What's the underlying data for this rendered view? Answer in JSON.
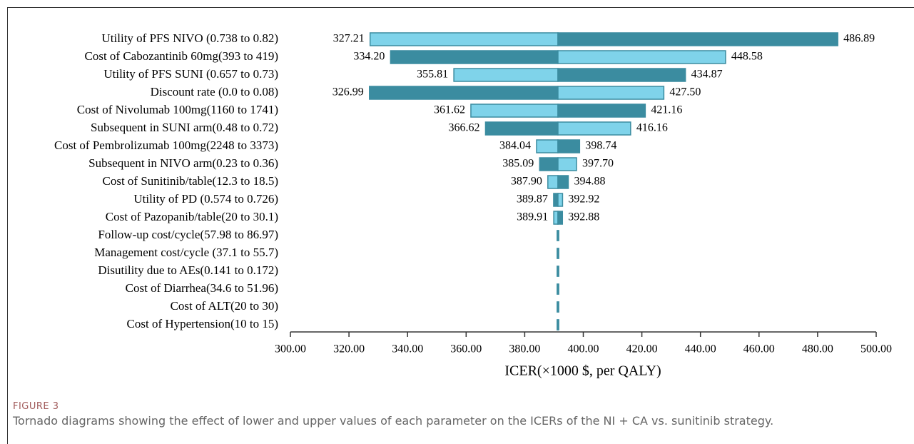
{
  "chart_data": {
    "type": "tornado",
    "x_label": "ICER(×1000 $, per QALY)",
    "categories": [
      "Utility of PFS NIVO (0.738 to 0.82)",
      "Cost of Cabozantinib 60mg(393 to 419)",
      "Utility of PFS SUNI (0.657 to 0.73)",
      "Discount rate (0.0 to 0.08)",
      "Cost of Nivolumab 100mg(1160 to 1741)",
      "Subsequent in SUNI arm(0.48 to 0.72)",
      "Cost of Pembrolizumab 100mg(2248 to 3373)",
      "Subsequent in NIVO arm(0.23 to 0.36)",
      "Cost of Sunitinib/table(12.3 to 18.5)",
      "Utility of PD (0.574 to 0.726)",
      "Cost of Pazopanib/table(20 to 30.1)",
      "Follow-up cost/cycle(57.98 to 86.97)",
      "Management cost/cycle (37.1 to 55.7)",
      "Disutility due to AEs(0.141 to 0.172)",
      "Cost of Diarrhea(34.6 to 51.96)",
      "Cost of ALT(20 to 30)",
      "Cost of Hypertension(10 to 15)"
    ],
    "base": 391.35,
    "low": [
      327.21,
      334.2,
      355.81,
      326.99,
      361.62,
      366.62,
      384.04,
      385.09,
      387.9,
      389.87,
      389.91,
      391.35,
      391.35,
      391.35,
      391.35,
      391.35,
      391.35
    ],
    "low_labels": [
      "327.21",
      "334.20",
      "355.81",
      "326.99",
      "361.62",
      "366.62",
      "384.04",
      "385.09",
      "387.90",
      "389.87",
      "389.91",
      null,
      null,
      null,
      null,
      null,
      null
    ],
    "high": [
      486.89,
      448.58,
      434.87,
      427.5,
      421.16,
      416.16,
      398.74,
      397.7,
      394.88,
      392.92,
      392.88,
      391.35,
      391.35,
      391.35,
      391.35,
      391.35,
      391.35
    ],
    "high_labels": [
      "486.89",
      "448.58",
      "434.87",
      "427.50",
      "421.16",
      "416.16",
      "398.74",
      "397.70",
      "394.88",
      "392.92",
      "392.88",
      null,
      null,
      null,
      null,
      null,
      null
    ],
    "low_colors": [
      "#7fd3ea",
      "#3b8ca0",
      "#7fd3ea",
      "#3b8ca0",
      "#7fd3ea",
      "#3b8ca0",
      "#7fd3ea",
      "#3b8ca0",
      "#7fd3ea",
      "#3b8ca0",
      "#7fd3ea",
      "#3b8ca0",
      "#3b8ca0",
      "#3b8ca0",
      "#3b8ca0",
      "#3b8ca0",
      "#3b8ca0"
    ],
    "high_colors": [
      "#3b8ca0",
      "#7fd3ea",
      "#3b8ca0",
      "#7fd3ea",
      "#3b8ca0",
      "#7fd3ea",
      "#3b8ca0",
      "#7fd3ea",
      "#3b8ca0",
      "#7fd3ea",
      "#3b8ca0",
      "#3b8ca0",
      "#3b8ca0",
      "#3b8ca0",
      "#3b8ca0",
      "#3b8ca0",
      "#3b8ca0"
    ],
    "xlim": [
      300,
      500
    ],
    "xticks": [
      {
        "value": 300,
        "label": "300.00"
      },
      {
        "value": 320,
        "label": "320.00"
      },
      {
        "value": 340,
        "label": "340.00"
      },
      {
        "value": 360,
        "label": "360.00"
      },
      {
        "value": 380,
        "label": "380.00"
      },
      {
        "value": 400,
        "label": "400.00"
      },
      {
        "value": 420,
        "label": "420.00"
      },
      {
        "value": 440,
        "label": "440.00"
      },
      {
        "value": 460,
        "label": "460.00"
      },
      {
        "value": 480,
        "label": "480.00"
      },
      {
        "value": 500,
        "label": "500.00"
      }
    ]
  },
  "figure": {
    "label": "FIGURE 3",
    "caption": "Tornado diagrams showing the effect of lower and upper values of each parameter on the ICERs of the NI + CA vs. sunitinib strategy."
  }
}
